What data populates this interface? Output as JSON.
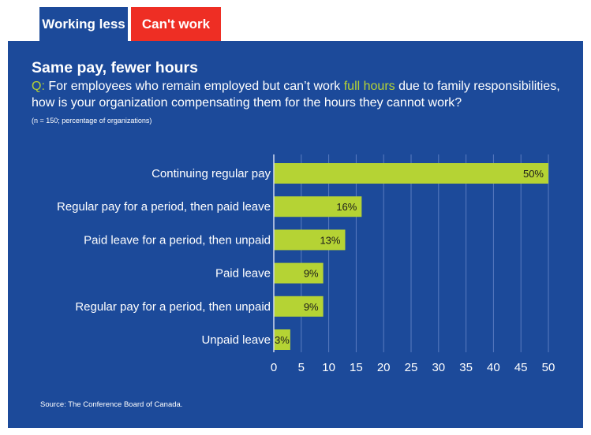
{
  "tabs": [
    {
      "label": "Working less",
      "active": true,
      "color": "#1c4a9a"
    },
    {
      "label": "Can't work",
      "active": false,
      "color": "#ee2e24"
    }
  ],
  "header": {
    "title": "Same pay, fewer hours",
    "question_prefix": "Q:",
    "question_part1": " For employees who remain employed but can’t work ",
    "question_highlight": "full hours",
    "question_part2": " due to family responsibilities, how is your organization compensating them for the hours they cannot work?",
    "note": "(n = 150; percentage of organizations)"
  },
  "footer": {
    "source": "Source: The Conference Board of Canada."
  },
  "colors": {
    "panel": "#1c4a9a",
    "bar": "#b5d334",
    "highlight": "#b5d334",
    "grid": "#5a7cc0"
  },
  "chart_data": {
    "type": "bar",
    "orientation": "horizontal",
    "title": "Same pay, fewer hours",
    "categories": [
      "Continuing regular pay",
      "Regular pay for a period, then paid leave",
      "Paid leave for a period, then unpaid",
      "Paid leave",
      "Regular pay for a period, then unpaid",
      "Unpaid leave"
    ],
    "values": [
      50,
      16,
      13,
      9,
      9,
      3
    ],
    "value_labels": [
      "50%",
      "16%",
      "13%",
      "9%",
      "9%",
      "3%"
    ],
    "xlim": [
      0,
      50
    ],
    "xticks": [
      "0",
      "5",
      "10",
      "15",
      "20",
      "25",
      "30",
      "35",
      "40",
      "45",
      "50"
    ],
    "xlabel": "",
    "ylabel": "",
    "grid": true
  }
}
